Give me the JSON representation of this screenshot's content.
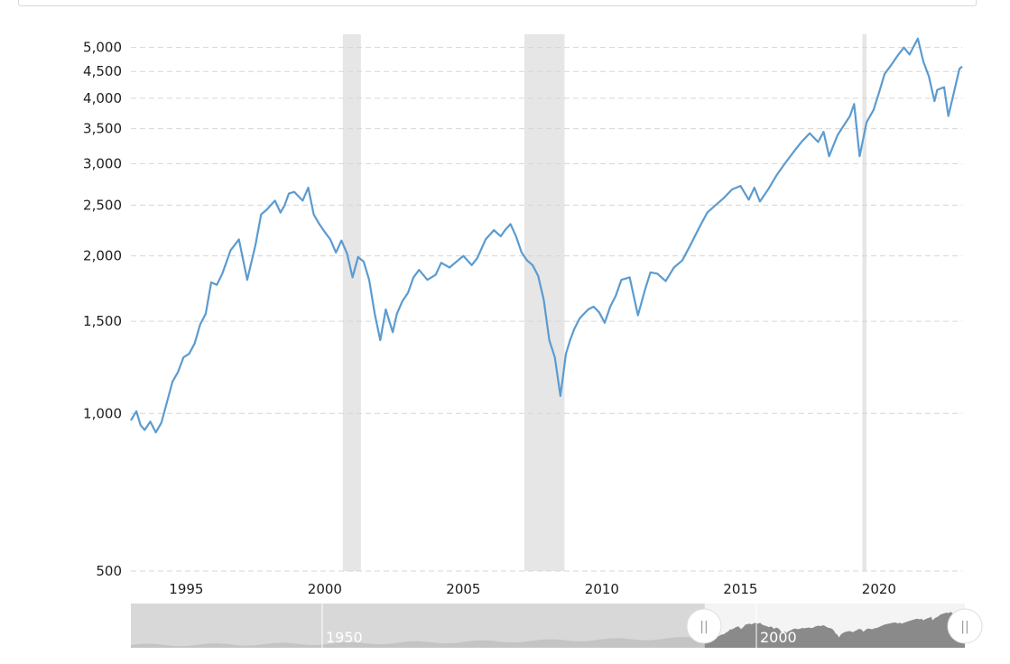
{
  "chart_data": {
    "type": "line",
    "title": "",
    "xlabel": "",
    "ylabel": "",
    "y_scale": "log",
    "ylim": [
      500,
      5300
    ],
    "xlim": [
      1993.0,
      2023.0
    ],
    "grid": "horizontal-dashed",
    "legend": "none",
    "line_color": "#5b9bd0",
    "recession_color": "#e6e6e6",
    "y_ticks": [
      {
        "value": 500,
        "label": "500"
      },
      {
        "value": 1000,
        "label": "1,000"
      },
      {
        "value": 1500,
        "label": "1,500"
      },
      {
        "value": 2000,
        "label": "2,000"
      },
      {
        "value": 2500,
        "label": "2,500"
      },
      {
        "value": 3000,
        "label": "3,000"
      },
      {
        "value": 3500,
        "label": "3,500"
      },
      {
        "value": 4000,
        "label": "4,000"
      },
      {
        "value": 4500,
        "label": "4,500"
      },
      {
        "value": 5000,
        "label": "5,000"
      }
    ],
    "x_ticks": [
      {
        "value": 1995,
        "label": "1995"
      },
      {
        "value": 2000,
        "label": "2000"
      },
      {
        "value": 2005,
        "label": "2005"
      },
      {
        "value": 2010,
        "label": "2010"
      },
      {
        "value": 2015,
        "label": "2015"
      },
      {
        "value": 2020,
        "label": "2020"
      }
    ],
    "recessions": [
      {
        "start": 2000.65,
        "end": 2001.3
      },
      {
        "start": 2007.2,
        "end": 2008.65
      },
      {
        "start": 2019.4,
        "end": 2019.55
      }
    ],
    "series": [
      {
        "x": [
          1993.0,
          1993.2,
          1993.35,
          1993.5,
          1993.7,
          1993.9,
          1994.1,
          1994.3,
          1994.5,
          1994.7,
          1994.9,
          1995.1,
          1995.3,
          1995.5,
          1995.7,
          1995.9,
          1996.1,
          1996.3,
          1996.6,
          1996.9,
          1997.2,
          1997.5,
          1997.7,
          1997.9,
          1998.2,
          1998.4,
          1998.55,
          1998.7,
          1998.9,
          1999.2,
          1999.4,
          1999.6,
          1999.8,
          2000.0,
          2000.2,
          2000.4,
          2000.6,
          2000.8,
          2001.0,
          2001.2,
          2001.4,
          2001.6,
          2001.8,
          2002.0,
          2002.2,
          2002.45,
          2002.6,
          2002.8,
          2003.0,
          2003.2,
          2003.4,
          2003.7,
          2004.0,
          2004.2,
          2004.5,
          2004.8,
          2005.0,
          2005.3,
          2005.5,
          2005.8,
          2006.1,
          2006.35,
          2006.5,
          2006.7,
          2006.9,
          2007.1,
          2007.3,
          2007.5,
          2007.7,
          2007.9,
          2008.1,
          2008.3,
          2008.5,
          2008.7,
          2008.85,
          2009.0,
          2009.2,
          2009.5,
          2009.7,
          2009.9,
          2010.1,
          2010.3,
          2010.5,
          2010.7,
          2011.0,
          2011.3,
          2011.55,
          2011.75,
          2012.0,
          2012.3,
          2012.6,
          2012.9,
          2013.2,
          2013.5,
          2013.8,
          2014.1,
          2014.4,
          2014.7,
          2015.0,
          2015.3,
          2015.5,
          2015.7,
          2016.0,
          2016.3,
          2016.6,
          2016.9,
          2017.2,
          2017.5,
          2017.8,
          2018.0,
          2018.2,
          2018.5,
          2018.7,
          2018.95,
          2019.1,
          2019.3,
          2019.55,
          2019.8,
          2020.0,
          2020.2,
          2020.4,
          2020.7,
          2020.9,
          2021.1,
          2021.4,
          2021.6,
          2021.8,
          2022.0,
          2022.1,
          2022.35,
          2022.5,
          2022.7,
          2022.9,
          2023.0
        ],
        "values": [
          970,
          1010,
          950,
          930,
          965,
          920,
          960,
          1050,
          1150,
          1200,
          1280,
          1300,
          1360,
          1480,
          1550,
          1780,
          1760,
          1850,
          2050,
          2150,
          1800,
          2100,
          2400,
          2450,
          2550,
          2420,
          2500,
          2630,
          2650,
          2550,
          2700,
          2400,
          2300,
          2220,
          2150,
          2030,
          2140,
          2020,
          1820,
          1990,
          1950,
          1800,
          1550,
          1380,
          1580,
          1430,
          1550,
          1640,
          1700,
          1820,
          1880,
          1800,
          1840,
          1940,
          1900,
          1960,
          2000,
          1920,
          1980,
          2150,
          2240,
          2180,
          2240,
          2300,
          2180,
          2030,
          1960,
          1920,
          1830,
          1650,
          1380,
          1280,
          1080,
          1300,
          1380,
          1450,
          1520,
          1580,
          1600,
          1560,
          1490,
          1600,
          1680,
          1800,
          1820,
          1540,
          1720,
          1860,
          1850,
          1790,
          1900,
          1960,
          2100,
          2260,
          2420,
          2500,
          2580,
          2680,
          2720,
          2560,
          2700,
          2540,
          2680,
          2850,
          3000,
          3150,
          3300,
          3430,
          3300,
          3450,
          3100,
          3400,
          3530,
          3700,
          3900,
          3100,
          3600,
          3800,
          4100,
          4450,
          4600,
          4850,
          5000,
          4850,
          5200,
          4700,
          4400,
          3950,
          4150,
          4200,
          3700,
          4100,
          4550,
          4600
        ]
      }
    ]
  },
  "navigator": {
    "labels": [
      {
        "value": 1950,
        "label": "1950"
      },
      {
        "value": 2000,
        "label": "2000"
      }
    ],
    "handle_glyph": "||"
  }
}
